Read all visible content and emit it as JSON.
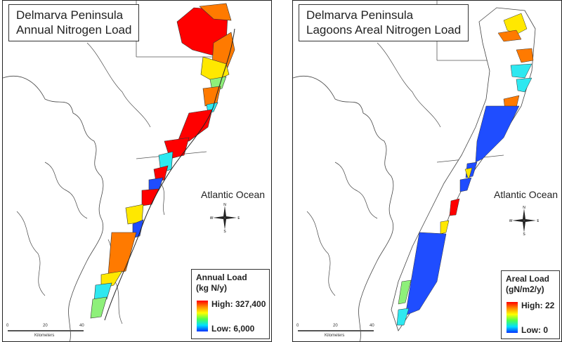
{
  "maps": [
    {
      "title_line1": "Delmarva Peninsula",
      "title_line2": "Annual Nitrogen Load",
      "ocean_label": "Atlantic Ocean",
      "legend": {
        "title_line1": "Annual Load",
        "title_line2": "(kg N/y)",
        "high_label": "High: 327,400",
        "low_label": "Low: 6,000"
      },
      "scale": {
        "ticks": [
          "0",
          "20",
          "40"
        ],
        "unit": "Kilometers"
      },
      "compass": {
        "n": "N",
        "s": "S",
        "e": "E",
        "w": "W"
      }
    },
    {
      "title_line1": "Delmarva Peninsula",
      "title_line2": "Lagoons Areal Nitrogen Load",
      "ocean_label": "Atlantic Ocean",
      "legend": {
        "title_line1": "Areal Load",
        "title_line2": "(gN/m2/y)",
        "high_label": "High: 22",
        "low_label": "Low: 0"
      },
      "scale": {
        "ticks": [
          "0",
          "20",
          "40"
        ],
        "unit": "Kilometers"
      },
      "compass": {
        "n": "N",
        "s": "S",
        "e": "E",
        "w": "W"
      }
    }
  ],
  "colors": {
    "high": "#ff0000",
    "orange": "#ff7a00",
    "yellow": "#ffe800",
    "green": "#8ef07a",
    "cyan": "#2ee8f0",
    "blue": "#1f4dff",
    "outline": "#333333"
  }
}
